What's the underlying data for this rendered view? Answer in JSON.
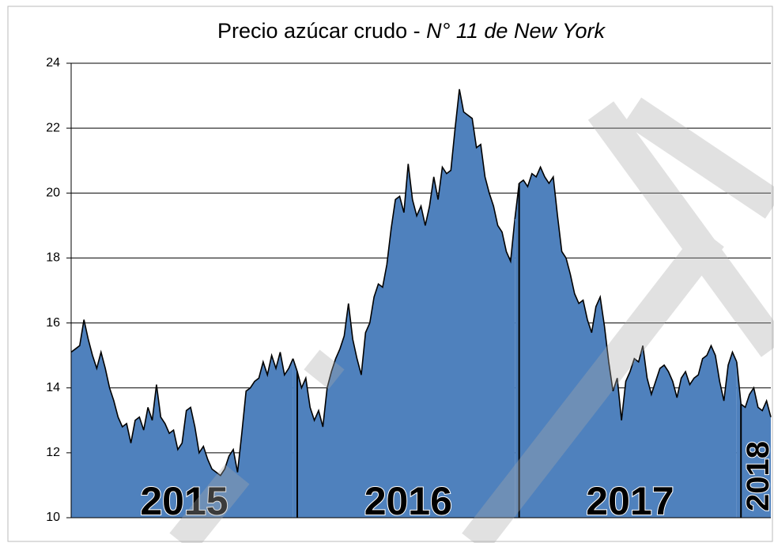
{
  "chart_data": {
    "type": "area",
    "title": "Precio azúcar crudo - ",
    "title_italic": "N° 11 de New York",
    "color": "#4f81bd",
    "ylim": [
      10,
      24
    ],
    "yticks": [
      10,
      12,
      14,
      16,
      18,
      20,
      22,
      24
    ],
    "grid": true,
    "series": [
      {
        "name": "2015",
        "values": [
          15.1,
          15.2,
          15.3,
          16.1,
          15.5,
          15.0,
          14.6,
          15.1,
          14.6,
          14.0,
          13.6,
          13.1,
          12.8,
          12.9,
          12.3,
          13.0,
          13.1,
          12.7,
          13.4,
          13.0,
          14.1,
          13.1,
          12.9,
          12.6,
          12.7,
          12.1,
          12.3,
          13.3,
          13.4,
          12.8,
          12.0,
          12.2,
          11.8,
          11.5,
          11.4,
          11.3,
          11.5,
          11.9,
          12.1,
          11.4,
          12.6,
          13.9,
          14.0,
          14.2,
          14.3,
          14.8,
          14.4,
          15.0,
          14.6,
          15.1,
          14.4,
          14.6,
          14.9
        ]
      },
      {
        "name": "2016",
        "values": [
          14.5,
          14.0,
          14.3,
          13.4,
          13.0,
          13.3,
          12.8,
          14.0,
          14.5,
          14.9,
          15.2,
          15.6,
          16.6,
          15.5,
          14.9,
          14.4,
          15.7,
          16.0,
          16.8,
          17.2,
          17.1,
          17.8,
          18.9,
          19.8,
          19.9,
          19.4,
          20.9,
          19.8,
          19.3,
          19.6,
          19.0,
          19.6,
          20.5,
          19.8,
          20.8,
          20.6,
          20.7,
          22.0,
          23.2,
          22.5,
          22.4,
          22.3,
          21.4,
          21.5,
          20.5,
          20.0,
          19.6,
          19.0,
          18.8,
          18.2,
          17.9,
          19.2
        ]
      },
      {
        "name": "2017",
        "values": [
          20.3,
          20.4,
          20.2,
          20.6,
          20.5,
          20.8,
          20.5,
          20.3,
          20.5,
          19.3,
          18.2,
          18.0,
          17.5,
          16.9,
          16.6,
          16.7,
          16.1,
          15.7,
          16.5,
          16.8,
          15.9,
          14.8,
          13.9,
          14.3,
          13.0,
          14.2,
          14.5,
          14.9,
          14.8,
          15.3,
          14.3,
          13.8,
          14.2,
          14.6,
          14.7,
          14.5,
          14.2,
          13.7,
          14.3,
          14.5,
          14.1,
          14.3,
          14.4,
          14.9,
          15.0,
          15.3,
          15.0,
          14.2,
          13.6,
          14.7,
          15.1,
          14.8
        ]
      },
      {
        "name": "2018",
        "values": [
          13.5,
          13.4,
          13.8,
          14.0,
          13.4,
          13.3,
          13.6,
          13.1
        ]
      }
    ]
  }
}
